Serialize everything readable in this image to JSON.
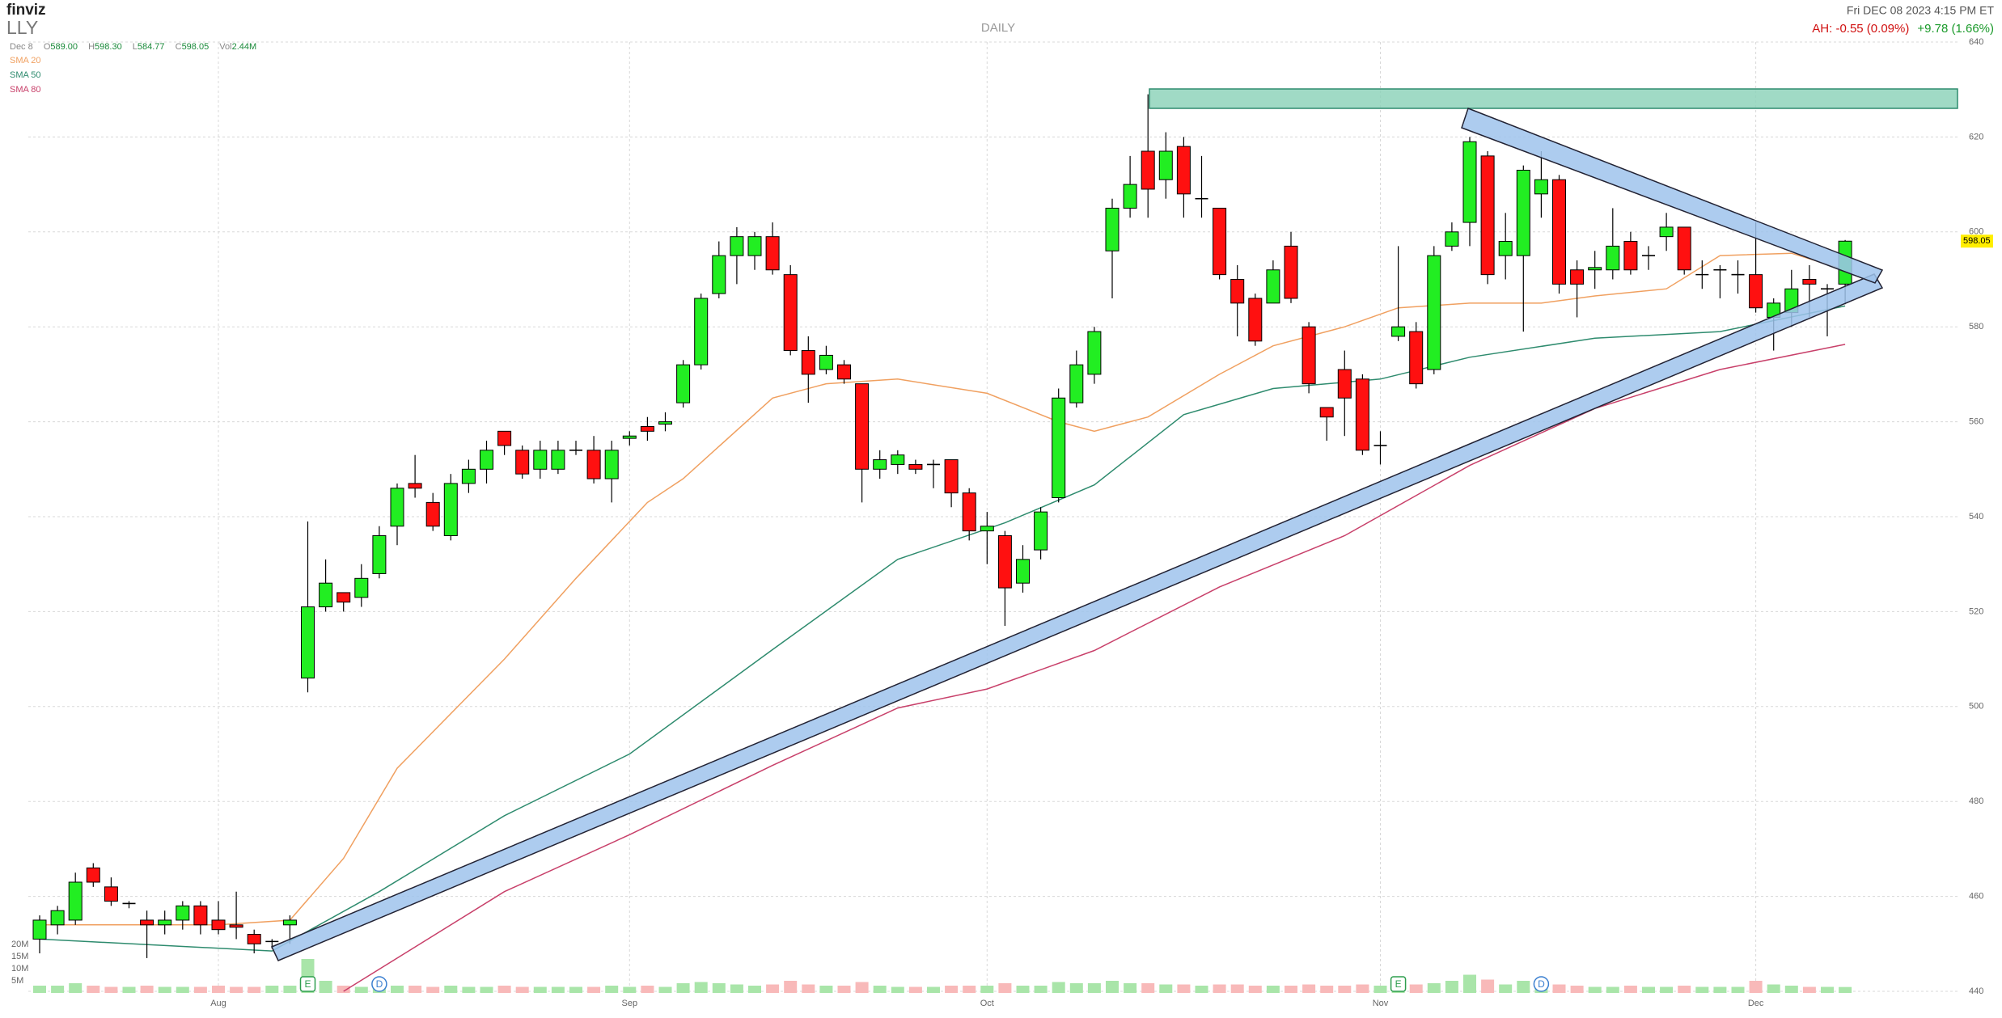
{
  "header": {
    "logo": "finviz",
    "ticker": "LLY",
    "date": "Dec 8",
    "open_label": "O",
    "open": "589.00",
    "high_label": "H",
    "high": "598.30",
    "low_label": "L",
    "low": "584.77",
    "close_label": "C",
    "close": "598.05",
    "volume_label": "Vol",
    "volume": "2.44M",
    "timeframe": "DAILY",
    "timestamp": "Fri DEC 08 2023 4:15 PM ET",
    "after_hours": "AH: -0.55 (0.09%)",
    "change": "+9.78 (1.66%)"
  },
  "chart_data": {
    "type": "candlestick",
    "categories": [
      null,
      null,
      null,
      null,
      null,
      null,
      null,
      null,
      null,
      null,
      "Aug",
      null,
      null,
      null,
      null,
      null,
      null,
      null,
      null,
      null,
      null,
      null,
      null,
      null,
      null,
      null,
      null,
      null,
      null,
      null,
      null,
      null,
      null,
      "Sep",
      null,
      null,
      null,
      null,
      null,
      null,
      null,
      null,
      null,
      null,
      null,
      null,
      null,
      null,
      null,
      null,
      null,
      null,
      null,
      "Oct",
      null,
      null,
      null,
      null,
      null,
      null,
      null,
      null,
      null,
      null,
      null,
      null,
      null,
      null,
      null,
      null,
      null,
      null,
      null,
      null,
      null,
      "Nov",
      null,
      null,
      null,
      null,
      null,
      null,
      null,
      null,
      null,
      null,
      null,
      null,
      null,
      null,
      null,
      null,
      null,
      null,
      null,
      null,
      "Dec",
      null,
      null,
      null,
      null,
      null
    ],
    "open": [
      451,
      454,
      455,
      466,
      462,
      458.5,
      455,
      454,
      455,
      458,
      455,
      454,
      452,
      450.5,
      454,
      506,
      521,
      524,
      523,
      528,
      538,
      547,
      543,
      536,
      547,
      550,
      558,
      554,
      550,
      550,
      554,
      554,
      548,
      556.5,
      559,
      559.5,
      564,
      572,
      587,
      595,
      595,
      599,
      591,
      575,
      571,
      572,
      568,
      550,
      551,
      551,
      551,
      552,
      545,
      537,
      536,
      526,
      533,
      544,
      564,
      570,
      596,
      605,
      617,
      611,
      618,
      607,
      605,
      590,
      586,
      585,
      597,
      580,
      563,
      571,
      569,
      555,
      578,
      579,
      571,
      597,
      602,
      616,
      595,
      595,
      608,
      611,
      592,
      592,
      592,
      598,
      595,
      599,
      601,
      591,
      592,
      591,
      591,
      582,
      583,
      590,
      588,
      589
    ],
    "high": [
      456,
      458,
      465,
      467,
      464,
      459,
      457,
      457,
      459,
      459,
      459,
      461,
      453,
      451,
      456,
      539,
      531,
      524,
      530,
      538,
      547,
      553,
      545,
      549,
      552,
      556,
      558,
      555,
      556,
      556,
      556,
      557,
      556,
      558,
      561,
      562,
      573,
      587,
      598,
      601,
      600,
      602,
      593,
      578,
      576,
      573,
      568,
      554,
      554,
      552,
      552,
      552,
      546,
      541,
      537,
      534,
      542,
      567,
      575,
      580,
      607,
      616,
      629,
      621,
      620,
      616,
      605,
      593,
      587,
      594,
      600,
      581,
      563,
      575,
      570,
      558,
      597,
      581,
      597,
      602,
      620,
      617,
      604,
      614,
      617,
      612,
      594,
      596,
      605,
      600,
      597,
      604,
      601,
      594,
      593,
      594,
      602,
      586,
      592,
      593,
      589,
      598.3
    ],
    "low": [
      448,
      452,
      454,
      462,
      458,
      457.5,
      447,
      452,
      453,
      452,
      452,
      451,
      448,
      449,
      450,
      503,
      520,
      520,
      521,
      527,
      534,
      544,
      537,
      535,
      545,
      547,
      553,
      548,
      548,
      549,
      553,
      547,
      543,
      555,
      556,
      558,
      563,
      571,
      586,
      589,
      592,
      591,
      574,
      564,
      570,
      568,
      543,
      548,
      549,
      549,
      546,
      542,
      535,
      530,
      517,
      524,
      531,
      543,
      563,
      568,
      586,
      603,
      603,
      607,
      603,
      603,
      590,
      578,
      576,
      585,
      585,
      566,
      556,
      557,
      553,
      551,
      577,
      567,
      570,
      596,
      597,
      589,
      590,
      579,
      603,
      587,
      582,
      588,
      590,
      591,
      592,
      596,
      591,
      588,
      586,
      587,
      583,
      575,
      580,
      582,
      578,
      584.77
    ],
    "close": [
      455,
      457,
      463,
      463,
      459,
      458.5,
      454,
      455,
      458,
      454,
      453,
      453.5,
      450,
      450.5,
      455,
      521,
      526,
      522,
      527,
      536,
      546,
      546,
      538,
      547,
      550,
      554,
      555,
      549,
      554,
      554,
      554,
      548,
      554,
      557,
      558,
      560,
      572,
      586,
      595,
      599,
      599,
      592,
      575,
      570,
      574,
      569,
      550,
      552,
      553,
      550,
      551,
      545,
      537,
      538,
      525,
      531,
      541,
      565,
      572,
      579,
      605,
      610,
      609,
      617,
      608,
      607,
      591,
      585,
      577,
      592,
      586,
      568,
      561,
      565,
      554,
      555,
      580,
      568,
      595,
      600,
      619,
      591,
      598,
      613,
      611,
      589,
      589,
      592.5,
      597,
      592,
      595,
      601,
      592,
      591,
      592,
      591,
      584,
      585,
      588,
      589,
      588,
      598.05
    ],
    "up_color": "#22ee22",
    "down_color": "#ff1010",
    "ylim": [
      440,
      640
    ],
    "yticks": [
      440,
      460,
      480,
      500,
      520,
      540,
      560,
      580,
      600,
      620,
      640
    ],
    "grid": true,
    "volume": {
      "values": [
        3,
        3,
        4,
        3,
        2.5,
        2.5,
        3,
        2.5,
        2.5,
        2.5,
        3,
        2.5,
        2.5,
        3,
        3,
        14,
        5,
        3,
        2.5,
        3,
        3,
        3,
        2.5,
        3,
        2.5,
        2.5,
        3,
        2.5,
        2.5,
        2.5,
        2.5,
        2.5,
        3,
        2.5,
        3,
        2.5,
        4,
        4.5,
        4,
        3.5,
        3,
        3.5,
        5,
        3.5,
        3,
        3,
        4.5,
        3,
        2.5,
        2.5,
        2.5,
        3,
        3,
        3,
        4,
        3,
        3,
        4.5,
        4,
        4,
        5,
        4,
        4,
        3.5,
        3.5,
        3,
        3.5,
        3.5,
        3,
        3,
        3,
        3.5,
        3,
        3,
        3.5,
        3,
        4.5,
        3.5,
        4,
        5,
        7.5,
        5.5,
        3.5,
        5,
        4,
        3.5,
        3,
        2.5,
        2.5,
        3,
        2.5,
        2.5,
        3,
        2.5,
        2.5,
        2.5,
        5,
        3.5,
        3,
        2.5,
        2.5,
        2.44
      ],
      "ylim": [
        0,
        20
      ],
      "ticks": [
        {
          "value": 5,
          "label": "5M"
        },
        {
          "value": 10,
          "label": "10M"
        },
        {
          "value": 15,
          "label": "15M"
        },
        {
          "value": 20,
          "label": "20M"
        }
      ],
      "up_color": "#a9e5a9",
      "down_color": "#f8b9b9"
    },
    "sma": [
      {
        "name": "SMA 20",
        "color": "#f0a060",
        "x": [
          0,
          10,
          14,
          17,
          20,
          26,
          30,
          34,
          36,
          41,
          44,
          48,
          53,
          57,
          59,
          62,
          66,
          69,
          73,
          76,
          80,
          84,
          87,
          91,
          94,
          98,
          101
        ],
        "values": [
          454,
          454,
          455,
          468,
          487,
          510,
          527,
          543,
          548,
          565,
          568,
          569,
          566,
          560,
          558,
          561,
          570,
          576,
          580,
          584,
          585,
          585,
          586.5,
          588,
          595,
          595.5,
          592
        ]
      },
      {
        "name": "SMA 50",
        "color": "#2e8b6e",
        "x": [
          0,
          13,
          19,
          26,
          33,
          41,
          48,
          54,
          59,
          64,
          69,
          75,
          80,
          87,
          94,
          101
        ],
        "values": [
          451,
          448.5,
          461,
          477,
          490,
          512,
          531,
          538.7,
          546.7,
          561.5,
          567,
          569,
          573.6,
          577.6,
          579,
          584.4
        ]
      },
      {
        "name": "SMA 80",
        "color": "#c8406a",
        "x": [
          17,
          26,
          33,
          41,
          48,
          53,
          59,
          66,
          73,
          80,
          87,
          94,
          101
        ],
        "values": [
          440,
          461,
          473,
          487.6,
          499.7,
          503.7,
          511.8,
          525.2,
          536,
          550.8,
          562.8,
          571,
          576.3
        ]
      }
    ],
    "events": [
      {
        "label": "E",
        "x": 15,
        "color": "#2e9e4e"
      },
      {
        "label": "D",
        "x": 19,
        "color": "#3a7fd0"
      },
      {
        "label": "E",
        "x": 76,
        "color": "#2e9e4e"
      },
      {
        "label": "D",
        "x": 84,
        "color": "#3a7fd0"
      }
    ]
  }
}
